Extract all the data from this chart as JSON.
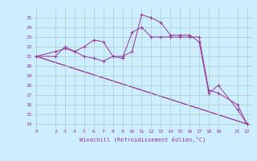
{
  "xlabel": "Windchill (Refroidissement éolien,°C)",
  "bg_color": "#cceeff",
  "grid_color": "#aaccbb",
  "line_color": "#993399",
  "x_ticks": [
    0,
    2,
    3,
    4,
    5,
    6,
    7,
    8,
    9,
    10,
    11,
    12,
    13,
    14,
    15,
    16,
    17,
    18,
    19,
    21,
    22
  ],
  "ylim": [
    13.5,
    26.0
  ],
  "xlim": [
    -0.3,
    22.5
  ],
  "y_ticks": [
    14,
    15,
    16,
    17,
    18,
    19,
    20,
    21,
    22,
    23,
    24,
    25
  ],
  "series": [
    {
      "x": [
        0,
        2,
        3,
        4,
        5,
        6,
        7,
        8,
        9,
        10,
        11,
        12,
        13,
        14,
        15,
        16,
        17,
        18,
        19,
        21,
        22
      ],
      "y": [
        21,
        21,
        22,
        21.5,
        21,
        20.8,
        20.5,
        21,
        21,
        21.5,
        25.3,
        25.0,
        24.5,
        23.2,
        23.2,
        23.2,
        22.5,
        17.2,
        18.0,
        15.5,
        14.0
      ]
    },
    {
      "x": [
        0,
        2,
        3,
        4,
        5,
        6,
        7,
        8,
        9,
        10,
        11,
        12,
        13,
        14,
        15,
        16,
        17,
        18,
        19,
        21,
        22
      ],
      "y": [
        21,
        21.5,
        21.8,
        21.5,
        22.0,
        22.7,
        22.5,
        21.0,
        20.8,
        23.5,
        24.0,
        23.0,
        23.0,
        23.0,
        23.0,
        23.0,
        23.0,
        17.5,
        17.2,
        16.0,
        14.0
      ]
    },
    {
      "x": [
        0,
        22
      ],
      "y": [
        21.0,
        14.0
      ]
    },
    {
      "x": [
        0,
        22
      ],
      "y": [
        21.0,
        14.0
      ]
    }
  ]
}
